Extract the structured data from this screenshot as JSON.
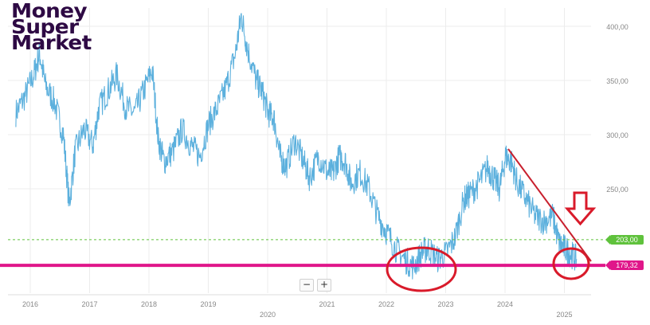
{
  "logo": {
    "line1": "Money",
    "line2": "Super",
    "line3": "Market"
  },
  "controls": {
    "zoom_out": "−",
    "zoom_in": "+"
  },
  "colors": {
    "series": "#5cb0dd",
    "support": "#e0168a",
    "reference": "#5fc23c",
    "annotation": "#d91a2a",
    "trend": "#c8202e"
  },
  "chart_data": {
    "type": "line",
    "x_ticks": [
      "2016",
      "2017",
      "2018",
      "2019",
      "2020",
      "2021",
      "2022",
      "2023",
      "2024",
      "2025"
    ],
    "y_ticks": [
      "400,00",
      "350,00",
      "300,00",
      "250,00"
    ],
    "ylim": [
      170,
      420
    ],
    "grid": true,
    "series": [
      {
        "points": [
          [
            2015.65,
            320
          ],
          [
            2015.8,
            335
          ],
          [
            2015.95,
            355
          ],
          [
            2016.05,
            375
          ],
          [
            2016.15,
            345
          ],
          [
            2016.3,
            330
          ],
          [
            2016.45,
            300
          ],
          [
            2016.55,
            235
          ],
          [
            2016.65,
            285
          ],
          [
            2016.8,
            305
          ],
          [
            2016.95,
            290
          ],
          [
            2017.05,
            325
          ],
          [
            2017.2,
            340
          ],
          [
            2017.35,
            355
          ],
          [
            2017.5,
            325
          ],
          [
            2017.65,
            320
          ],
          [
            2017.8,
            340
          ],
          [
            2017.95,
            360
          ],
          [
            2018.05,
            295
          ],
          [
            2018.15,
            275
          ],
          [
            2018.3,
            285
          ],
          [
            2018.45,
            305
          ],
          [
            2018.6,
            290
          ],
          [
            2018.75,
            280
          ],
          [
            2018.9,
            310
          ],
          [
            2019.05,
            325
          ],
          [
            2019.2,
            345
          ],
          [
            2019.35,
            375
          ],
          [
            2019.45,
            410
          ],
          [
            2019.55,
            380
          ],
          [
            2019.7,
            350
          ],
          [
            2019.8,
            340
          ],
          [
            2019.9,
            320
          ],
          [
            2020.0,
            315
          ],
          [
            2020.1,
            280
          ],
          [
            2020.2,
            270
          ],
          [
            2020.35,
            295
          ],
          [
            2020.5,
            275
          ],
          [
            2020.6,
            260
          ],
          [
            2020.75,
            280
          ],
          [
            2020.9,
            265
          ],
          [
            2021.0,
            265
          ],
          [
            2021.1,
            280
          ],
          [
            2021.2,
            275
          ],
          [
            2021.3,
            255
          ],
          [
            2021.45,
            265
          ],
          [
            2021.6,
            250
          ],
          [
            2021.75,
            225
          ],
          [
            2021.9,
            210
          ],
          [
            2022.05,
            195
          ],
          [
            2022.2,
            185
          ],
          [
            2022.35,
            178
          ],
          [
            2022.5,
            192
          ],
          [
            2022.6,
            195
          ],
          [
            2022.75,
            185
          ],
          [
            2022.9,
            190
          ],
          [
            2023.05,
            205
          ],
          [
            2023.2,
            240
          ],
          [
            2023.3,
            245
          ],
          [
            2023.45,
            255
          ],
          [
            2023.6,
            270
          ],
          [
            2023.7,
            260
          ],
          [
            2023.8,
            250
          ],
          [
            2023.9,
            280
          ],
          [
            2024.0,
            275
          ],
          [
            2024.1,
            255
          ],
          [
            2024.25,
            240
          ],
          [
            2024.4,
            225
          ],
          [
            2024.55,
            220
          ],
          [
            2024.7,
            225
          ],
          [
            2024.8,
            200
          ],
          [
            2024.9,
            195
          ],
          [
            2025.0,
            190
          ],
          [
            2025.1,
            185
          ]
        ]
      }
    ],
    "reference_lines": [
      {
        "value": 203.0,
        "label": "203,00",
        "style": "dashed",
        "color": "#5fc23c"
      },
      {
        "value": 179.32,
        "label": "179,32",
        "style": "solid",
        "color": "#e0168a"
      }
    ],
    "annotations": [
      "red ellipse around 2022 low",
      "red ellipse around early 2025",
      "red downtrend line from 2024 peak",
      "red down arrow near 2025"
    ]
  }
}
